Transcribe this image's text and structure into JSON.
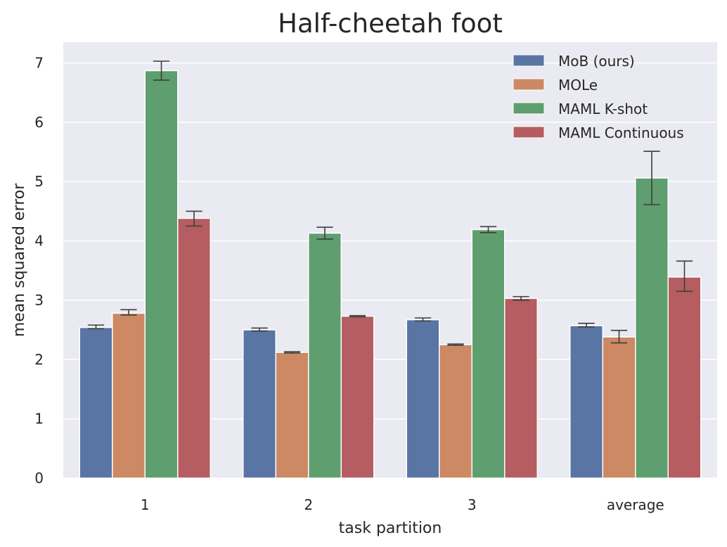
{
  "chart_data": {
    "type": "bar",
    "title": "Half-cheetah foot",
    "xlabel": "task partition",
    "ylabel": "mean squared error",
    "categories": [
      "1",
      "2",
      "3",
      "average"
    ],
    "ylim": [
      0,
      7.35
    ],
    "yticks": [
      0,
      1,
      2,
      3,
      4,
      5,
      6,
      7
    ],
    "grid": true,
    "legend_position": "top-right",
    "series": [
      {
        "name": "MoB (ours)",
        "color": "#5975a4",
        "values": [
          2.54,
          2.5,
          2.67,
          2.57
        ],
        "err_low": [
          2.52,
          2.48,
          2.65,
          2.55
        ],
        "err_high": [
          2.58,
          2.53,
          2.7,
          2.61
        ]
      },
      {
        "name": "MOLe",
        "color": "#cc8963",
        "values": [
          2.78,
          2.12,
          2.25,
          2.38
        ],
        "err_low": [
          2.75,
          2.11,
          2.24,
          2.28
        ],
        "err_high": [
          2.84,
          2.13,
          2.26,
          2.49
        ]
      },
      {
        "name": "MAML K-shot",
        "color": "#5f9e6e",
        "values": [
          6.87,
          4.13,
          4.19,
          5.06
        ],
        "err_low": [
          6.71,
          4.03,
          4.14,
          4.61
        ],
        "err_high": [
          7.03,
          4.23,
          4.24,
          5.51
        ]
      },
      {
        "name": "MAML Continuous",
        "color": "#b55d60",
        "values": [
          4.38,
          2.73,
          3.03,
          3.39
        ],
        "err_low": [
          4.25,
          2.72,
          3.0,
          3.15
        ],
        "err_high": [
          4.5,
          2.74,
          3.06,
          3.66
        ]
      }
    ]
  }
}
